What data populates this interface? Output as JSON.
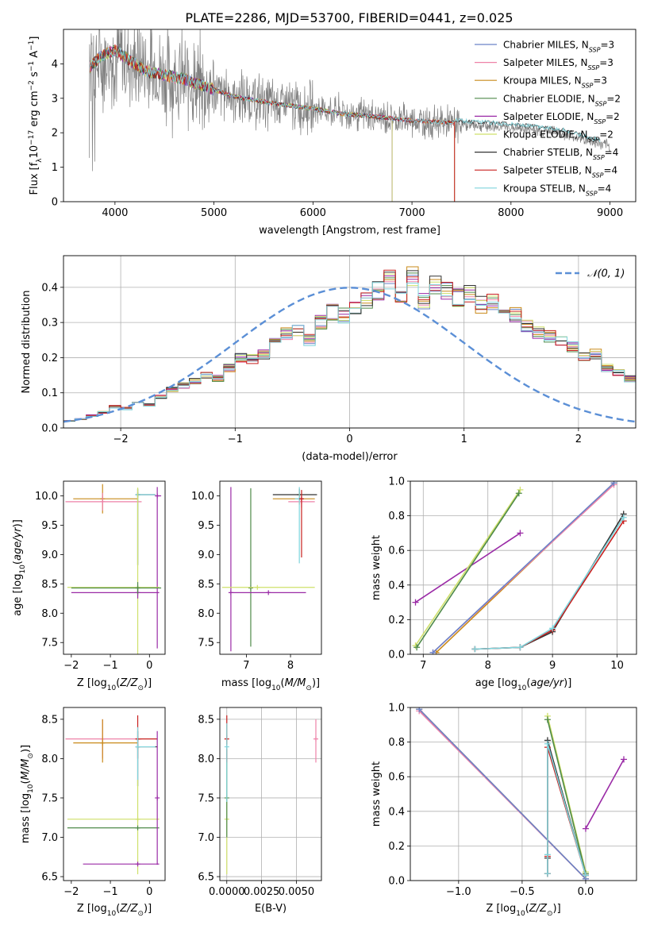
{
  "figure_title": "PLATE=2286, MJD=53700, FIBERID=0441, z=0.025",
  "series_colors": [
    "#6a83c8",
    "#ee82a8",
    "#c98a1a",
    "#4f8a4a",
    "#9a2aa6",
    "#cfe06a",
    "#333333",
    "#c8201f",
    "#7fd4dc"
  ],
  "chart_data": [
    {
      "id": "spectrum",
      "type": "line",
      "xlabel": "wavelength [Angstrom, rest frame]",
      "ylabel": "Flux [f_λ10^-17 erg cm^-2 s^-1 A^-1]",
      "xlim": [
        3480,
        9260
      ],
      "ylim": [
        0,
        5
      ],
      "xticks": [
        4000,
        5000,
        6000,
        7000,
        8000,
        9000
      ],
      "yticks": [
        0,
        1,
        2,
        3,
        4
      ],
      "grid": false,
      "legend": "top-right",
      "data_range": [
        3740,
        9000
      ],
      "data_color": "#808080",
      "model_continuum": {
        "x": [
          3750,
          3850,
          4000,
          4300,
          4700,
          4900,
          5200,
          5600,
          6000,
          6300,
          6700,
          7000,
          7420
        ],
        "y": [
          3.9,
          4.2,
          4.4,
          3.8,
          3.55,
          3.35,
          3.05,
          2.85,
          2.7,
          2.55,
          2.45,
          2.35,
          2.3
        ]
      },
      "data_continuum": {
        "x": [
          3750,
          4000,
          4500,
          5000,
          5500,
          6000,
          6500,
          7000,
          7500,
          8000,
          8500,
          9000
        ],
        "y": [
          3.9,
          4.2,
          3.7,
          3.2,
          2.9,
          2.7,
          2.5,
          2.35,
          2.25,
          2.15,
          2.0,
          1.6
        ]
      },
      "series": [
        {
          "name": "Chabrier MILES, N_SSP=3",
          "end": 7430
        },
        {
          "name": "Salpeter MILES, N_SSP=3",
          "end": 7430
        },
        {
          "name": "Kroupa MILES, N_SSP=3",
          "end": 7430
        },
        {
          "name": "Chabrier ELODIE, N_SSP=2",
          "end": 6800
        },
        {
          "name": "Salpeter ELODIE, N_SSP=2",
          "end": 6800
        },
        {
          "name": "Kroupa ELODIE, N_SSP=2",
          "end": 6800
        },
        {
          "name": "Chabrier STELIB, N_SSP=4",
          "end": 8900
        },
        {
          "name": "Salpeter STELIB, N_SSP=4",
          "end": 7430
        },
        {
          "name": "Kroupa STELIB, N_SSP=4",
          "end": 8900
        }
      ]
    },
    {
      "id": "histogram",
      "type": "line",
      "xlabel": "(data-model)/error",
      "ylabel": "Normed distribution",
      "xlim": [
        -2.5,
        2.5
      ],
      "ylim": [
        0,
        0.49
      ],
      "xticks": [
        -2,
        -1,
        0,
        1,
        2
      ],
      "yticks": [
        0.0,
        0.1,
        0.2,
        0.3,
        0.4
      ],
      "grid": true,
      "legend": "top-right",
      "reference_curve": {
        "name": "𝒩(0, 1)",
        "color": "#5b8fd6",
        "dash": "dashed"
      },
      "bin_edges_start": -2.5,
      "bin_width": 0.1,
      "bin_heights": [
        0.02,
        0.025,
        0.035,
        0.045,
        0.06,
        0.055,
        0.07,
        0.065,
        0.09,
        0.11,
        0.12,
        0.135,
        0.15,
        0.14,
        0.17,
        0.2,
        0.195,
        0.21,
        0.24,
        0.27,
        0.28,
        0.25,
        0.3,
        0.33,
        0.32,
        0.34,
        0.36,
        0.39,
        0.42,
        0.37,
        0.43,
        0.36,
        0.41,
        0.39,
        0.37,
        0.38,
        0.35,
        0.36,
        0.33,
        0.32,
        0.29,
        0.27,
        0.26,
        0.25,
        0.23,
        0.2,
        0.21,
        0.17,
        0.16,
        0.14,
        0.12,
        0.115,
        0.1,
        0.09,
        0.08,
        0.07,
        0.065,
        0.05,
        0.045,
        0.035,
        0.03,
        0.03,
        0.025,
        0.02,
        0.02
      ]
    },
    {
      "id": "z-age",
      "type": "scatter",
      "xlabel": "Z [log10(Z/Z⊙)]",
      "ylabel": "age [log10(age/yr)]",
      "xlim": [
        -2.2,
        0.4
      ],
      "ylim": [
        7.3,
        10.25
      ],
      "xticks": [
        -2,
        -1,
        0
      ],
      "yticks": [
        7.5,
        8.0,
        8.5,
        9.0,
        9.5,
        10.0
      ],
      "grid": false,
      "points": [
        {
          "c": 6,
          "x": -0.3,
          "xerr": [
            0.0,
            0.45
          ],
          "y": 10.02,
          "yerr": [
            1.2,
            0.1
          ]
        },
        {
          "c": 2,
          "x": -1.2,
          "xerr": [
            0.75,
            0.9
          ],
          "y": 9.95,
          "yerr": [
            0.25,
            0.25
          ]
        },
        {
          "c": 1,
          "x": -1.2,
          "xerr": [
            0.95,
            1.0
          ],
          "y": 9.9,
          "yerr": [
            0.15,
            0.15
          ]
        },
        {
          "c": 8,
          "x": -0.3,
          "xerr": [
            0.0,
            0.45
          ],
          "y": 10.02,
          "yerr": [
            1.2,
            0.1
          ]
        },
        {
          "c": 4,
          "x": 0.2,
          "xerr": [
            0.05,
            0.1
          ],
          "y": 10.0,
          "yerr": [
            2.6,
            0.15
          ]
        },
        {
          "c": 5,
          "x": -0.3,
          "xerr": [
            1.8,
            0.55
          ],
          "y": 8.44,
          "yerr": [
            1.3,
            1.7
          ]
        },
        {
          "c": 4,
          "x": -0.3,
          "xerr": [
            1.7,
            0.55
          ],
          "y": 8.35,
          "yerr": [
            0.1,
            0.1
          ]
        },
        {
          "c": 3,
          "x": -0.3,
          "xerr": [
            1.7,
            0.6
          ],
          "y": 8.43,
          "yerr": [
            0.1,
            0.1
          ]
        }
      ]
    },
    {
      "id": "mass-age",
      "type": "scatter",
      "xlabel": "mass [log10(M/M⊙)]",
      "ylabel": "",
      "xlim": [
        6.4,
        8.7
      ],
      "ylim": [
        7.3,
        10.25
      ],
      "xticks": [
        7,
        8
      ],
      "yticks": [
        7.5,
        8.0,
        8.5,
        9.0,
        9.5,
        10.0
      ],
      "grid": false,
      "points": [
        {
          "c": 6,
          "x": 8.2,
          "xerr": [
            0.6,
            0.4
          ],
          "y": 10.02,
          "yerr": [
            0.1,
            0.1
          ]
        },
        {
          "c": 2,
          "x": 8.2,
          "xerr": [
            0.6,
            0.35
          ],
          "y": 9.95,
          "yerr": [
            0.1,
            0.1
          ]
        },
        {
          "c": 1,
          "x": 8.25,
          "xerr": [
            0.3,
            0.3
          ],
          "y": 9.9,
          "yerr": [
            0.1,
            0.1
          ]
        },
        {
          "c": 8,
          "x": 8.2,
          "xerr": [
            0.1,
            0.1
          ],
          "y": 9.95,
          "yerr": [
            1.1,
            0.2
          ]
        },
        {
          "c": 7,
          "x": 8.25,
          "xerr": [
            0.05,
            0.05
          ],
          "y": 9.95,
          "yerr": [
            1.0,
            0.15
          ]
        },
        {
          "c": 4,
          "x": 6.65,
          "xerr": [
            0.0,
            0.0
          ],
          "y": 8.35,
          "yerr": [
            1.0,
            1.8
          ]
        },
        {
          "c": 3,
          "x": 7.1,
          "xerr": [
            0.0,
            0.0
          ],
          "y": 8.43,
          "yerr": [
            1.0,
            1.7
          ]
        },
        {
          "c": 5,
          "x": 7.25,
          "xerr": [
            0.8,
            1.3
          ],
          "y": 8.44,
          "yerr": [
            0.0,
            0.0
          ]
        },
        {
          "c": 4,
          "x": 7.5,
          "xerr": [
            0.85,
            0.85
          ],
          "y": 8.35,
          "yerr": [
            0.0,
            0.0
          ]
        }
      ]
    },
    {
      "id": "age-weight",
      "type": "line",
      "xlabel": "age [log10(age/yr)]",
      "ylabel": "mass weight",
      "xlim": [
        6.8,
        10.3
      ],
      "ylim": [
        0,
        1.0
      ],
      "xticks": [
        7,
        8,
        9,
        10
      ],
      "yticks": [
        0.0,
        0.2,
        0.4,
        0.6,
        0.8,
        1.0
      ],
      "grid": true,
      "series": [
        {
          "c": 4,
          "x": [
            6.88,
            8.5
          ],
          "y": [
            0.3,
            0.7
          ]
        },
        {
          "c": 5,
          "x": [
            6.88,
            8.5
          ],
          "y": [
            0.05,
            0.95
          ]
        },
        {
          "c": 3,
          "x": [
            6.9,
            8.48
          ],
          "y": [
            0.04,
            0.93
          ]
        },
        {
          "c": 2,
          "x": [
            7.2,
            9.95
          ],
          "y": [
            0.01,
            0.99
          ]
        },
        {
          "c": 1,
          "x": [
            7.15,
            9.95
          ],
          "y": [
            0.01,
            0.98
          ]
        },
        {
          "c": 0,
          "x": [
            7.15,
            9.95
          ],
          "y": [
            0.01,
            0.99
          ]
        },
        {
          "c": 6,
          "x": [
            7.8,
            8.5,
            9.0,
            10.1
          ],
          "y": [
            0.03,
            0.04,
            0.13,
            0.81
          ]
        },
        {
          "c": 7,
          "x": [
            7.8,
            8.5,
            9.0,
            10.1
          ],
          "y": [
            0.03,
            0.04,
            0.14,
            0.77
          ]
        },
        {
          "c": 8,
          "x": [
            7.8,
            8.5,
            9.0,
            10.1
          ],
          "y": [
            0.03,
            0.04,
            0.15,
            0.79
          ]
        }
      ]
    },
    {
      "id": "z-mass",
      "type": "scatter",
      "xlabel": "Z [log10(Z/Z⊙)]",
      "ylabel": "mass [log10(M/M⊙)]",
      "xlim": [
        -2.2,
        0.4
      ],
      "ylim": [
        6.45,
        8.65
      ],
      "xticks": [
        -2,
        -1,
        0
      ],
      "yticks": [
        6.5,
        7.0,
        7.5,
        8.0,
        8.5
      ],
      "grid": false,
      "points": [
        {
          "c": 1,
          "x": -1.2,
          "xerr": [
            0.95,
            1.0
          ],
          "y": 8.25,
          "yerr": [
            0.25,
            0.25
          ]
        },
        {
          "c": 2,
          "x": -1.2,
          "xerr": [
            0.75,
            0.9
          ],
          "y": 8.2,
          "yerr": [
            0.25,
            0.3
          ]
        },
        {
          "c": 7,
          "x": -0.3,
          "xerr": [
            0.0,
            0.5
          ],
          "y": 8.25,
          "yerr": [
            0.25,
            0.3
          ]
        },
        {
          "c": 6,
          "x": -0.3,
          "xerr": [
            0.0,
            0.5
          ],
          "y": 8.15,
          "yerr": [
            0.5,
            0.2
          ]
        },
        {
          "c": 8,
          "x": -0.3,
          "xerr": [
            0.0,
            0.45
          ],
          "y": 8.15,
          "yerr": [
            0.5,
            0.25
          ]
        },
        {
          "c": 5,
          "x": -0.3,
          "xerr": [
            1.8,
            0.55
          ],
          "y": 7.23,
          "yerr": [
            0.7,
            0.5
          ]
        },
        {
          "c": 3,
          "x": -0.3,
          "xerr": [
            1.8,
            0.55
          ],
          "y": 7.12,
          "yerr": [
            0.0,
            0.0
          ]
        },
        {
          "c": 4,
          "x": -0.3,
          "xerr": [
            1.4,
            0.55
          ],
          "y": 6.66,
          "yerr": [
            0.0,
            0.0
          ]
        },
        {
          "c": 4,
          "x": 0.2,
          "xerr": [
            0.0,
            0.0
          ],
          "y": 7.5,
          "yerr": [
            0.85,
            0.85
          ]
        }
      ]
    },
    {
      "id": "ebv-mass",
      "type": "scatter",
      "xlabel": "E(B-V)",
      "ylabel": "",
      "xlim": [
        -0.0005,
        0.0068
      ],
      "ylim": [
        6.45,
        8.65
      ],
      "xticks": [
        0.0,
        0.0025,
        0.005
      ],
      "xticklabels": [
        "0.0000",
        "0.0025",
        "0.0050"
      ],
      "yticks": [
        6.5,
        7.0,
        7.5,
        8.0,
        8.5
      ],
      "grid": true,
      "points": [
        {
          "c": 5,
          "x": 0.0,
          "xerr": [
            0.0,
            0.0
          ],
          "y": 7.23,
          "yerr": [
            0.7,
            1.2
          ]
        },
        {
          "c": 3,
          "x": 0.0,
          "xerr": [
            0.0,
            0.0
          ],
          "y": 7.5,
          "yerr": [
            0.5,
            0.8
          ]
        },
        {
          "c": 7,
          "x": 0.0,
          "xerr": [
            0.0,
            0.0
          ],
          "y": 8.25,
          "yerr": [
            0.3,
            0.3
          ]
        },
        {
          "c": 8,
          "x": 0.0,
          "xerr": [
            0.0,
            0.0
          ],
          "y": 8.15,
          "yerr": [
            0.7,
            0.3
          ]
        },
        {
          "c": 1,
          "x": 0.0064,
          "xerr": [
            0.0,
            0.0
          ],
          "y": 8.25,
          "yerr": [
            0.3,
            0.25
          ]
        }
      ]
    },
    {
      "id": "z-weight",
      "type": "line",
      "xlabel": "Z [log10(Z/Z⊙)]",
      "ylabel": "mass weight",
      "xlim": [
        -1.38,
        0.4
      ],
      "ylim": [
        0,
        1.0
      ],
      "xticks": [
        -1.0,
        -0.5,
        0.0
      ],
      "yticks": [
        0.0,
        0.2,
        0.4,
        0.6,
        0.8,
        1.0
      ],
      "grid": true,
      "series": [
        {
          "c": 2,
          "x": [
            -1.31,
            0.0
          ],
          "y": [
            0.99,
            0.01
          ]
        },
        {
          "c": 1,
          "x": [
            -1.31,
            0.0
          ],
          "y": [
            0.98,
            0.01
          ]
        },
        {
          "c": 0,
          "x": [
            -1.31,
            0.0
          ],
          "y": [
            0.99,
            0.01
          ]
        },
        {
          "c": 4,
          "x": [
            0.0,
            0.3
          ],
          "y": [
            0.3,
            0.7
          ]
        },
        {
          "c": 5,
          "x": [
            -0.3,
            0.0
          ],
          "y": [
            0.95,
            0.05
          ]
        },
        {
          "c": 3,
          "x": [
            -0.3,
            0.0
          ],
          "y": [
            0.93,
            0.04
          ]
        },
        {
          "c": 6,
          "x": [
            -0.3,
            -0.3,
            -0.3,
            0.0
          ],
          "y": [
            0.04,
            0.13,
            0.81,
            0.03
          ]
        },
        {
          "c": 7,
          "x": [
            -0.3,
            -0.3,
            -0.3,
            0.0
          ],
          "y": [
            0.04,
            0.14,
            0.77,
            0.03
          ]
        },
        {
          "c": 8,
          "x": [
            -0.3,
            -0.3,
            -0.3,
            0.0
          ],
          "y": [
            0.04,
            0.15,
            0.79,
            0.03
          ]
        }
      ]
    }
  ]
}
